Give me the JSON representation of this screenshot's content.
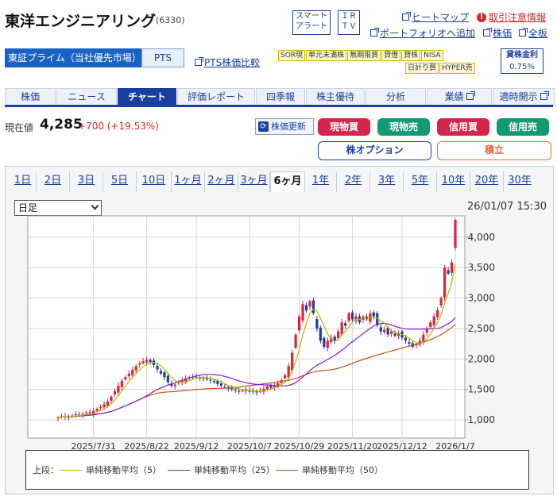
{
  "stock": {
    "name": "東洋エンジニアリング",
    "code": "(6330)",
    "price_label": "現在値",
    "price": "4,285",
    "change": "+700 (+19.53%)"
  },
  "header_buttons": {
    "smart_alert_1": "スマート",
    "smart_alert_2": "アラート",
    "irtv_1": "ＩＲ",
    "irtv_2": "ＴＶ"
  },
  "top_links": {
    "heatmap": "ヒートマップ",
    "caution": "取引注意情報",
    "portfolio": "ポートフォリオへ追加",
    "price_link": "株価",
    "board": "全板"
  },
  "market_tabs": {
    "prime": "東証プライム（当社優先市場）",
    "pts": "PTS",
    "pts_compare": "PTS株価比較"
  },
  "tags": [
    "SOR現",
    "単元未満株",
    "無期限買",
    "貸借",
    "貸株",
    "NISA",
    "日計り買",
    "HYPER売"
  ],
  "margin_rate": {
    "label": "貸株金利",
    "value": "0.75%"
  },
  "nav_tabs": [
    "株価",
    "ニュース",
    "チャート",
    "評価レポート",
    "四季報",
    "株主優待",
    "分析",
    "業績",
    "適時開示"
  ],
  "actions": {
    "refresh": "株価更新",
    "cash_buy": "現物買",
    "cash_sell": "現物売",
    "margin_buy": "信用買",
    "margin_sell": "信用売",
    "options": "株オプション",
    "accumulate": "積立"
  },
  "chart_controls": {
    "periods": [
      "1日",
      "2日",
      "3日",
      "5日",
      "10日",
      "1ヶ月",
      "2ヶ月",
      "3ヶ月",
      "6ヶ月",
      "1年",
      "2年",
      "3年",
      "5年",
      "10年",
      "20年",
      "30年"
    ],
    "active_period": "6ヶ月",
    "interval": "日足",
    "timestamp": "26/01/07 15:30"
  },
  "colors": {
    "up": "#e0203c",
    "down": "#1a3fa0",
    "ma5": "#b5b800",
    "ma25": "#8a1ec8",
    "ma50": "#c8501e",
    "accent": "#1a3fa0"
  },
  "chart_data": {
    "type": "candlestick",
    "x_ticks": [
      "2025/7/31",
      "2025/8/22",
      "2025/9/12",
      "2025/10/7",
      "2025/10/29",
      "2025/11/20",
      "2025/12/12",
      "2026/1/7"
    ],
    "y_ticks": [
      "1,000",
      "1,500",
      "2,000",
      "2,500",
      "3,000",
      "3,500",
      "4,000"
    ],
    "ylim": [
      700,
      4350
    ],
    "grid": true,
    "legend_label": "上段：",
    "legend": [
      "単純移動平均（5）",
      "単純移動平均（25）",
      "単純移動平均（50）"
    ],
    "closes": [
      1040,
      1050,
      1060,
      1045,
      1070,
      1090,
      1080,
      1100,
      1120,
      1110,
      1150,
      1180,
      1210,
      1250,
      1300,
      1380,
      1470,
      1560,
      1640,
      1700,
      1760,
      1820,
      1880,
      1930,
      1960,
      1980,
      1950,
      1900,
      1830,
      1760,
      1700,
      1620,
      1560,
      1580,
      1620,
      1650,
      1680,
      1700,
      1710,
      1700,
      1690,
      1680,
      1670,
      1650,
      1620,
      1590,
      1560,
      1540,
      1520,
      1500,
      1490,
      1470,
      1480,
      1470,
      1490,
      1460,
      1450,
      1480,
      1510,
      1550,
      1530,
      1560,
      1600,
      1650,
      1730,
      1880,
      2100,
      2400,
      2700,
      2900,
      2800,
      2950,
      2750,
      2500,
      2300,
      2200,
      2300,
      2350,
      2300,
      2450,
      2600,
      2550,
      2750,
      2650,
      2700,
      2600,
      2700,
      2650,
      2750,
      2700,
      2550,
      2450,
      2480,
      2400,
      2450,
      2380,
      2420,
      2350,
      2300,
      2250,
      2200,
      2250,
      2300,
      2400,
      2500,
      2600,
      2700,
      2800,
      3000,
      3500,
      3400,
      3585,
      4285
    ],
    "ma5_series": "computed",
    "ma25_series": "computed",
    "ma50_series": "computed"
  }
}
